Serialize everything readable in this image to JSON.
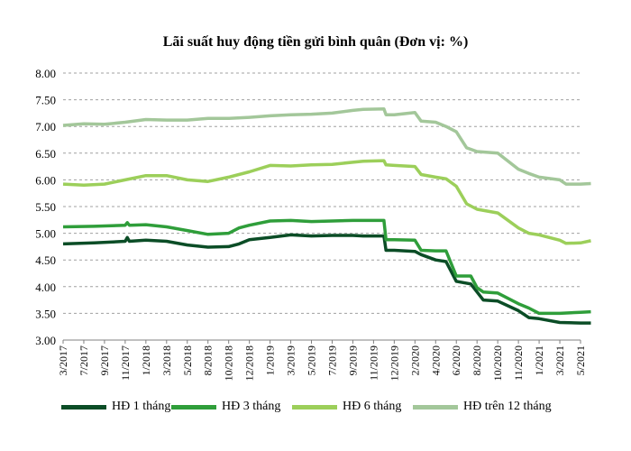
{
  "chart_data": {
    "type": "line",
    "title": "Lãi suất huy động tiền gửi bình quân (Đơn vị: %)",
    "xlabel": "",
    "ylabel": "",
    "ylim": [
      3.0,
      8.0
    ],
    "y_ticks": [
      "3.00",
      "3.50",
      "4.00",
      "4.50",
      "5.00",
      "5.50",
      "6.00",
      "6.50",
      "7.00",
      "7.50",
      "8.00"
    ],
    "y_tick_values": [
      3.0,
      3.5,
      4.0,
      4.5,
      5.0,
      5.5,
      6.0,
      6.5,
      7.0,
      7.5,
      8.0
    ],
    "x_tick_labels": [
      "3/2017",
      "7/2017",
      "9/2017",
      "11/2017",
      "1/2018",
      "3/2018",
      "5/2018",
      "8/2018",
      "10/2018",
      "12/2018",
      "1/2019",
      "3/2019",
      "5/2019",
      "7/2019",
      "9/2019",
      "11/2019",
      "12/2019",
      "2/2020",
      "4/2020",
      "6/2020",
      "8/2020",
      "10/2020",
      "11/2020",
      "1/2021",
      "3/2021",
      "5/2021"
    ],
    "grid": "horizontal dashed",
    "legend_position": "bottom",
    "series": [
      {
        "name": "HĐ 1 tháng",
        "color": "#0b4d26",
        "points": [
          [
            0,
            4.8
          ],
          [
            1.5,
            4.82
          ],
          [
            3,
            4.85
          ],
          [
            3.1,
            4.92
          ],
          [
            3.2,
            4.85
          ],
          [
            4,
            4.87
          ],
          [
            5,
            4.85
          ],
          [
            6,
            4.78
          ],
          [
            7,
            4.74
          ],
          [
            8,
            4.75
          ],
          [
            8.5,
            4.8
          ],
          [
            9,
            4.88
          ],
          [
            10,
            4.92
          ],
          [
            11,
            4.97
          ],
          [
            12,
            4.95
          ],
          [
            13,
            4.96
          ],
          [
            14,
            4.96
          ],
          [
            14.5,
            4.95
          ],
          [
            15.5,
            4.95
          ],
          [
            15.6,
            4.68
          ],
          [
            16,
            4.68
          ],
          [
            17,
            4.66
          ],
          [
            17.3,
            4.6
          ],
          [
            18,
            4.5
          ],
          [
            18.5,
            4.47
          ],
          [
            19,
            4.1
          ],
          [
            19.7,
            4.05
          ],
          [
            20,
            3.9
          ],
          [
            20.3,
            3.75
          ],
          [
            21,
            3.73
          ],
          [
            22,
            3.55
          ],
          [
            22.5,
            3.42
          ],
          [
            23,
            3.4
          ],
          [
            24,
            3.33
          ],
          [
            25,
            3.32
          ],
          [
            25.5,
            3.32
          ]
        ]
      },
      {
        "name": "HĐ 3 tháng",
        "color": "#2f9e3a",
        "points": [
          [
            0,
            5.12
          ],
          [
            1.5,
            5.13
          ],
          [
            3,
            5.15
          ],
          [
            3.1,
            5.2
          ],
          [
            3.2,
            5.15
          ],
          [
            4,
            5.16
          ],
          [
            5,
            5.12
          ],
          [
            6,
            5.05
          ],
          [
            7,
            4.98
          ],
          [
            8,
            5.0
          ],
          [
            8.5,
            5.1
          ],
          [
            9,
            5.15
          ],
          [
            10,
            5.23
          ],
          [
            11,
            5.24
          ],
          [
            12,
            5.22
          ],
          [
            13,
            5.23
          ],
          [
            14,
            5.24
          ],
          [
            14.5,
            5.24
          ],
          [
            15.5,
            5.24
          ],
          [
            15.6,
            4.88
          ],
          [
            16,
            4.88
          ],
          [
            17,
            4.87
          ],
          [
            17.3,
            4.68
          ],
          [
            18,
            4.67
          ],
          [
            18.5,
            4.67
          ],
          [
            19,
            4.2
          ],
          [
            19.7,
            4.2
          ],
          [
            20,
            3.98
          ],
          [
            20.3,
            3.9
          ],
          [
            21,
            3.88
          ],
          [
            22,
            3.68
          ],
          [
            22.5,
            3.6
          ],
          [
            23,
            3.5
          ],
          [
            24,
            3.5
          ],
          [
            25,
            3.52
          ],
          [
            25.5,
            3.53
          ]
        ]
      },
      {
        "name": "HĐ 6 tháng",
        "color": "#9ccf5a",
        "points": [
          [
            0,
            5.92
          ],
          [
            1,
            5.9
          ],
          [
            2,
            5.92
          ],
          [
            3,
            6.0
          ],
          [
            4,
            6.08
          ],
          [
            5,
            6.08
          ],
          [
            6,
            6.0
          ],
          [
            7,
            5.97
          ],
          [
            8,
            6.05
          ],
          [
            9,
            6.15
          ],
          [
            10,
            6.27
          ],
          [
            11,
            6.26
          ],
          [
            12,
            6.28
          ],
          [
            13,
            6.29
          ],
          [
            14,
            6.33
          ],
          [
            14.5,
            6.35
          ],
          [
            15.5,
            6.36
          ],
          [
            15.6,
            6.28
          ],
          [
            16,
            6.27
          ],
          [
            17,
            6.25
          ],
          [
            17.3,
            6.1
          ],
          [
            18,
            6.05
          ],
          [
            18.5,
            6.02
          ],
          [
            19,
            5.88
          ],
          [
            19.5,
            5.55
          ],
          [
            20,
            5.45
          ],
          [
            21,
            5.38
          ],
          [
            22,
            5.1
          ],
          [
            22.5,
            5.0
          ],
          [
            23,
            4.97
          ],
          [
            24,
            4.87
          ],
          [
            24.3,
            4.81
          ],
          [
            25,
            4.82
          ],
          [
            25.5,
            4.86
          ]
        ]
      },
      {
        "name": "HĐ trên 12 tháng",
        "color": "#a3c79a",
        "points": [
          [
            0,
            7.02
          ],
          [
            1,
            7.05
          ],
          [
            2,
            7.04
          ],
          [
            3,
            7.08
          ],
          [
            4,
            7.13
          ],
          [
            5,
            7.12
          ],
          [
            6,
            7.12
          ],
          [
            7,
            7.15
          ],
          [
            8,
            7.15
          ],
          [
            9,
            7.17
          ],
          [
            10,
            7.2
          ],
          [
            11,
            7.22
          ],
          [
            12,
            7.23
          ],
          [
            13,
            7.25
          ],
          [
            14,
            7.3
          ],
          [
            14.5,
            7.32
          ],
          [
            15.5,
            7.33
          ],
          [
            15.6,
            7.22
          ],
          [
            16,
            7.22
          ],
          [
            17,
            7.26
          ],
          [
            17.3,
            7.1
          ],
          [
            18,
            7.08
          ],
          [
            18.5,
            7.0
          ],
          [
            19,
            6.9
          ],
          [
            19.5,
            6.6
          ],
          [
            20,
            6.53
          ],
          [
            21,
            6.5
          ],
          [
            22,
            6.2
          ],
          [
            22.5,
            6.12
          ],
          [
            23,
            6.05
          ],
          [
            24,
            6.0
          ],
          [
            24.3,
            5.92
          ],
          [
            25,
            5.92
          ],
          [
            25.5,
            5.93
          ]
        ]
      }
    ]
  }
}
